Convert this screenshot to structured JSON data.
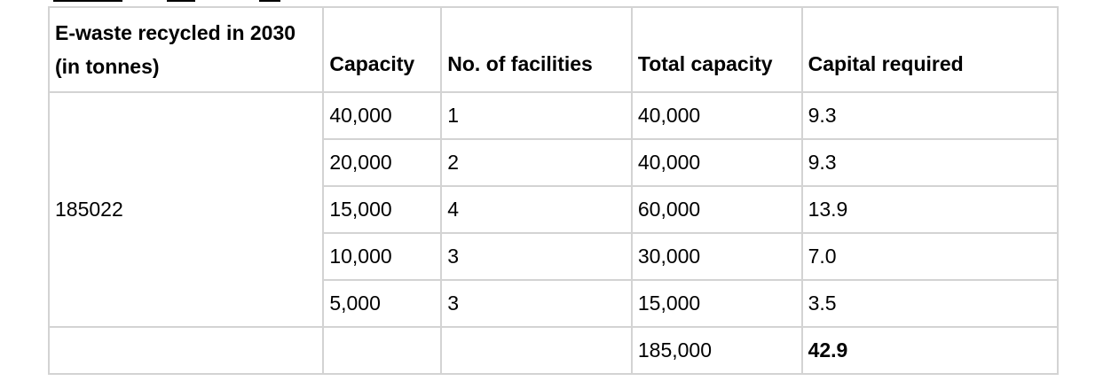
{
  "table": {
    "headers": {
      "ewaste": "E-waste recycled in 2030 (in tonnes)",
      "capacity": "Capacity",
      "facilities": "No. of facilities",
      "total_capacity": "Total capacity",
      "capital": "Capital required"
    },
    "ewaste_value": "185022",
    "rows": [
      {
        "capacity": "40,000",
        "facilities": "1",
        "total_capacity": "40,000",
        "capital": "9.3"
      },
      {
        "capacity": "20,000",
        "facilities": "2",
        "total_capacity": "40,000",
        "capital": "9.3"
      },
      {
        "capacity": "15,000",
        "facilities": "4",
        "total_capacity": "60,000",
        "capital": "13.9"
      },
      {
        "capacity": "10,000",
        "facilities": "3",
        "total_capacity": "30,000",
        "capital": "7.0"
      },
      {
        "capacity": "5,000",
        "facilities": "3",
        "total_capacity": "15,000",
        "capital": "3.5"
      }
    ],
    "total": {
      "total_capacity": "185,000",
      "capital": "42.9"
    }
  }
}
